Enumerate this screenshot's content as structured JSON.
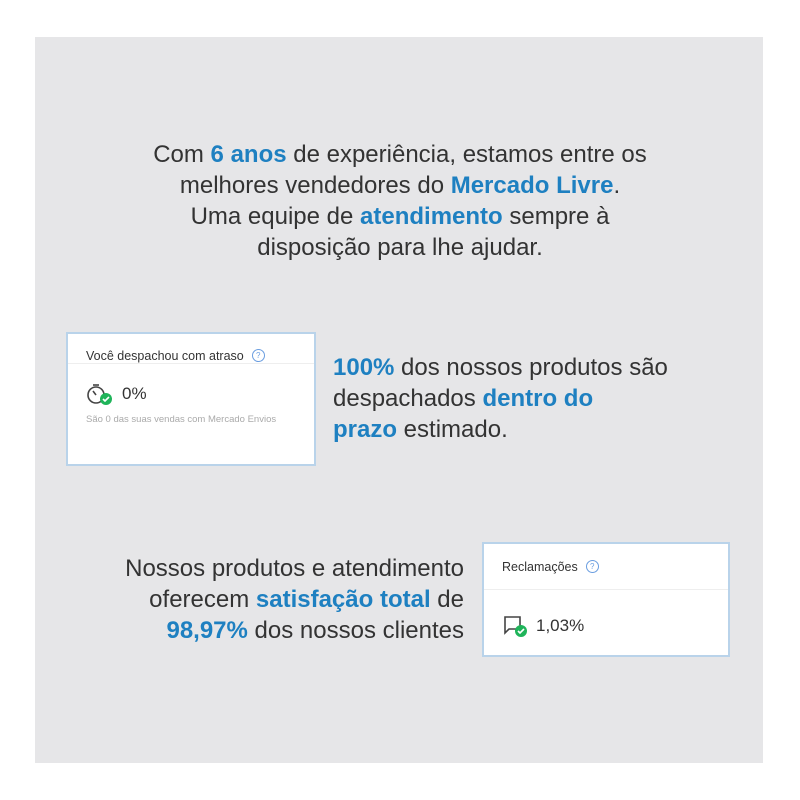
{
  "headline": [
    {
      "t": "Com "
    },
    {
      "t": "6 anos",
      "hl": true
    },
    {
      "t": " de experiência, estamos entre os"
    },
    {
      "br": true
    },
    {
      "t": "melhores vendedores do "
    },
    {
      "t": "Mercado Livre",
      "hl": true
    },
    {
      "t": "."
    },
    {
      "br": true
    },
    {
      "t": "Uma equipe de "
    },
    {
      "t": "atendimento",
      "hl": true
    },
    {
      "t": " sempre à"
    },
    {
      "br": true
    },
    {
      "t": "disposição para lhe ajudar."
    }
  ],
  "card_delay": {
    "title": "Você despachou com atraso",
    "help_icon": "question-circle-icon",
    "icon": "stopwatch-check-icon",
    "value": "0%",
    "note": "São 0 das suas vendas com Mercado Envios"
  },
  "shipping_text": [
    {
      "t": "100%",
      "hl": true
    },
    {
      "t": " dos nossos produtos são"
    },
    {
      "br": true
    },
    {
      "t": "despachados "
    },
    {
      "t": "dentro do",
      "hl": true
    },
    {
      "br": true
    },
    {
      "t": "prazo",
      "hl": true
    },
    {
      "t": " estimado."
    }
  ],
  "satisfaction_text": [
    {
      "t": "Nossos produtos e atendimento"
    },
    {
      "br": true
    },
    {
      "t": "oferecem "
    },
    {
      "t": "satisfação total",
      "hl": true
    },
    {
      "t": " de"
    },
    {
      "br": true
    },
    {
      "t": "98,97%",
      "hl": true
    },
    {
      "t": " dos nossos clientes"
    }
  ],
  "card_claims": {
    "title": "Reclamações",
    "help_icon": "question-circle-icon",
    "icon": "chat-check-icon",
    "value": "1,03%"
  },
  "colors": {
    "accent": "#1e80c1",
    "panel": "#e6e6e8",
    "check": "#1fb45a"
  }
}
